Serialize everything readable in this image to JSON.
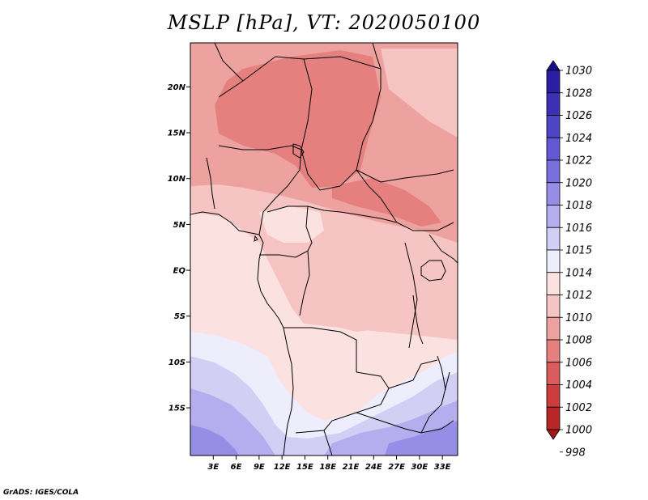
{
  "title": "MSLP [hPa], VT: 2020050100",
  "credit": "GrADS: IGES/COLA",
  "lat_ticks": [
    {
      "label": "20N",
      "lat": 20
    },
    {
      "label": "15N",
      "lat": 15
    },
    {
      "label": "10N",
      "lat": 10
    },
    {
      "label": "5N",
      "lat": 5
    },
    {
      "label": "EQ",
      "lat": 0
    },
    {
      "label": "5S",
      "lat": -5
    },
    {
      "label": "10S",
      "lat": -10
    },
    {
      "label": "15S",
      "lat": -15
    }
  ],
  "lon_ticks": [
    {
      "label": "3E",
      "lon": 3
    },
    {
      "label": "6E",
      "lon": 6
    },
    {
      "label": "9E",
      "lon": 9
    },
    {
      "label": "12E",
      "lon": 12
    },
    {
      "label": "15E",
      "lon": 15
    },
    {
      "label": "18E",
      "lon": 18
    },
    {
      "label": "21E",
      "lon": 21
    },
    {
      "label": "24E",
      "lon": 24
    },
    {
      "label": "27E",
      "lon": 27
    },
    {
      "label": "30E",
      "lon": 30
    },
    {
      "label": "33E",
      "lon": 33
    }
  ],
  "colorbar": {
    "levels": [
      {
        "label": "1030",
        "color": "#1a0e8c"
      },
      {
        "label": "1028",
        "color": "#2c1ea3"
      },
      {
        "label": "1026",
        "color": "#3c30b5"
      },
      {
        "label": "1024",
        "color": "#4d44c6"
      },
      {
        "label": "1022",
        "color": "#6258d3"
      },
      {
        "label": "1020",
        "color": "#7a70dd"
      },
      {
        "label": "1018",
        "color": "#968ee6"
      },
      {
        "label": "1016",
        "color": "#b4aeee"
      },
      {
        "label": "1015",
        "color": "#d2cff5"
      },
      {
        "label": "1014",
        "color": "#eeedfb"
      },
      {
        "label": "1012",
        "color": "#fbe2e0"
      },
      {
        "label": "1010",
        "color": "#f6c4c2"
      },
      {
        "label": "1008",
        "color": "#eea2a0"
      },
      {
        "label": "1006",
        "color": "#e5807f"
      },
      {
        "label": "1004",
        "color": "#da5c5c"
      },
      {
        "label": "1002",
        "color": "#cc3d3d"
      },
      {
        "label": "1000",
        "color": "#b82626"
      },
      {
        "label": "998",
        "color": "#a01818"
      }
    ]
  },
  "field_colors": {
    "hp1008": "#e5807f",
    "hp1010": "#eea2a0",
    "hp1011": "#f6c4c2",
    "hp1012": "#fbe2e0",
    "hp1014": "#eeedfb",
    "hp1015": "#d2cff5",
    "hp1016": "#b4aeee",
    "hp1018": "#968ee6"
  }
}
